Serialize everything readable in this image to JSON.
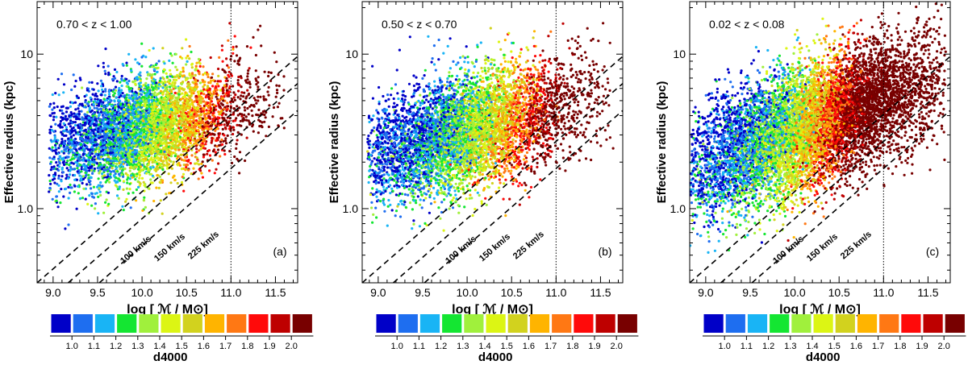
{
  "colors": {
    "d4000_bins": [
      "#0000c8",
      "#1e6ef0",
      "#19b4f5",
      "#14e632",
      "#a0f03c",
      "#dcf514",
      "#d2d21e",
      "#ffb400",
      "#ff7814",
      "#ff0a0a",
      "#be0000",
      "#780000"
    ],
    "guide_line": "#000000"
  },
  "chart_data": [
    {
      "type": "scatter",
      "panel_label": "(a)",
      "redshift_label": "0.70 < z < 1.00",
      "xlabel": "log [ ℳ / M⊙]",
      "ylabel": "Effective radius (kpc)",
      "xlim": [
        8.82,
        11.75
      ],
      "ylim_log10": [
        -0.48,
        1.34
      ],
      "yscale": "log",
      "x_ticks": [
        "9.0",
        "9.5",
        "10.0",
        "10.5",
        "11.0",
        "11.5"
      ],
      "x_tick_values": [
        9.0,
        9.5,
        10.0,
        10.5,
        11.0,
        11.5
      ],
      "y_ticks": [
        "1.0",
        "10"
      ],
      "y_tick_values": [
        1.0,
        10
      ],
      "vertical_line_x": 11.0,
      "velocity_lines": [
        {
          "label": "100 km/s",
          "x_at_y1": 9.78
        },
        {
          "label": "150 km/s",
          "x_at_y1": 10.13
        },
        {
          "label": "225 km/s",
          "x_at_y1": 10.48
        }
      ],
      "velocity_slope": 0.5,
      "population": {
        "n_points": 5200,
        "mass_range": [
          8.95,
          11.6
        ],
        "mass_center": 10.0,
        "mass_sigma": 0.55,
        "log_radius_at_mass_10": 0.52,
        "log_radius_slope": 0.14,
        "log_radius_scatter": 0.17,
        "d4000_at_mass_9": 1.0,
        "d4000_slope": 0.38,
        "d4000_scatter": 0.14
      }
    },
    {
      "type": "scatter",
      "panel_label": "(b)",
      "redshift_label": "0.50 < z < 0.70",
      "xlabel": "log [ ℳ / M⊙]",
      "ylabel": "Effective radius (kpc)",
      "xlim": [
        8.82,
        11.75
      ],
      "ylim_log10": [
        -0.48,
        1.34
      ],
      "yscale": "log",
      "x_ticks": [
        "9.0",
        "9.5",
        "10.0",
        "10.5",
        "11.0",
        "11.5"
      ],
      "x_tick_values": [
        9.0,
        9.5,
        10.0,
        10.5,
        11.0,
        11.5
      ],
      "y_ticks": [
        "1.0",
        "10"
      ],
      "y_tick_values": [
        1.0,
        10
      ],
      "vertical_line_x": 11.0,
      "velocity_lines": [
        {
          "label": "100 km/s",
          "x_at_y1": 9.78
        },
        {
          "label": "150 km/s",
          "x_at_y1": 10.13
        },
        {
          "label": "225 km/s",
          "x_at_y1": 10.48
        }
      ],
      "velocity_slope": 0.5,
      "population": {
        "n_points": 6000,
        "mass_range": [
          8.88,
          11.65
        ],
        "mass_center": 9.95,
        "mass_sigma": 0.6,
        "log_radius_at_mass_10": 0.5,
        "log_radius_slope": 0.16,
        "log_radius_scatter": 0.18,
        "d4000_at_mass_9": 1.0,
        "d4000_slope": 0.42,
        "d4000_scatter": 0.15
      }
    },
    {
      "type": "scatter",
      "panel_label": "(c)",
      "redshift_label": "0.02 < z < 0.08",
      "xlabel": "log [ ℳ / M⊙]",
      "ylabel": "Effective radius (kpc)",
      "xlim": [
        8.82,
        11.75
      ],
      "ylim_log10": [
        -0.48,
        1.34
      ],
      "yscale": "log",
      "x_ticks": [
        "9.0",
        "9.5",
        "10.0",
        "10.5",
        "11.0",
        "11.5"
      ],
      "x_tick_values": [
        9.0,
        9.5,
        10.0,
        10.5,
        11.0,
        11.5
      ],
      "y_ticks": [
        "1.0",
        "10"
      ],
      "y_tick_values": [
        1.0,
        10
      ],
      "vertical_line_x": 11.0,
      "velocity_lines": [
        {
          "label": "100 km/s",
          "x_at_y1": 9.78
        },
        {
          "label": "150 km/s",
          "x_at_y1": 10.13
        },
        {
          "label": "225 km/s",
          "x_at_y1": 10.48
        }
      ],
      "velocity_slope": 0.5,
      "population": {
        "n_points": 9000,
        "mass_range": [
          8.82,
          11.7
        ],
        "mass_center": 10.1,
        "mass_sigma": 0.7,
        "log_radius_at_mass_10": 0.5,
        "log_radius_slope": 0.22,
        "log_radius_scatter": 0.2,
        "d4000_at_mass_9": 1.0,
        "d4000_slope": 0.55,
        "d4000_scatter": 0.16
      }
    }
  ],
  "colorbar": {
    "title": "d4000",
    "tick_labels": [
      "1.0",
      "1.1",
      "1.2",
      "1.3",
      "1.4",
      "1.5",
      "1.6",
      "1.7",
      "1.8",
      "1.9",
      "2.0"
    ],
    "range": [
      0.95,
      2.15
    ]
  }
}
